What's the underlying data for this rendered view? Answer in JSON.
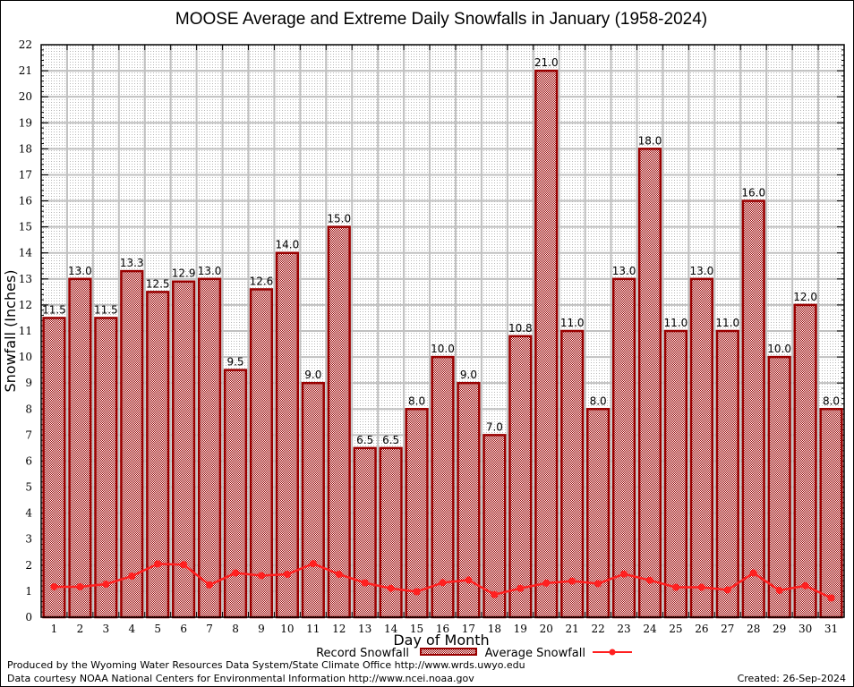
{
  "chart_data": {
    "type": "bar",
    "title": "MOOSE Average and Extreme Daily Snowfalls in January (1958-2024)",
    "xlabel": "Day of Month",
    "ylabel": "Snowfall (Inches)",
    "ylim": [
      0,
      22
    ],
    "yticks": [
      0,
      1,
      2,
      3,
      4,
      5,
      6,
      7,
      8,
      9,
      10,
      11,
      12,
      13,
      14,
      15,
      16,
      17,
      18,
      19,
      20,
      21,
      22
    ],
    "grid": true,
    "categories": [
      "1",
      "2",
      "3",
      "4",
      "5",
      "6",
      "7",
      "8",
      "9",
      "10",
      "11",
      "12",
      "13",
      "14",
      "15",
      "16",
      "17",
      "18",
      "19",
      "20",
      "21",
      "22",
      "23",
      "24",
      "25",
      "26",
      "27",
      "28",
      "29",
      "30",
      "31"
    ],
    "series": [
      {
        "name": "Record Snowfall",
        "type": "bar",
        "color": "#990000",
        "values": [
          11.5,
          13.0,
          11.5,
          13.3,
          12.5,
          12.9,
          13.0,
          9.5,
          12.6,
          14.0,
          9.0,
          15.0,
          6.5,
          6.5,
          8.0,
          10.0,
          9.0,
          7.0,
          10.8,
          21.0,
          11.0,
          8.0,
          13.0,
          18.0,
          11.0,
          13.0,
          11.0,
          16.0,
          10.0,
          12.0,
          8.0
        ],
        "labels": [
          "11.5",
          "13.0",
          "11.5",
          "13.3",
          "12.5",
          "12.9",
          "13.0",
          "9.5",
          "12.6",
          "14.0",
          "9.0",
          "15.0",
          "6.5",
          "6.5",
          "8.0",
          "10.0",
          "9.0",
          "7.0",
          "10.8",
          "21.0",
          "11.0",
          "8.0",
          "13.0",
          "18.0",
          "11.0",
          "13.0",
          "11.0",
          "16.0",
          "10.0",
          "12.0",
          "8.0"
        ]
      },
      {
        "name": "Average Snowfall",
        "type": "line",
        "color": "#ff2020",
        "values": [
          1.17,
          1.17,
          1.27,
          1.58,
          2.05,
          2.02,
          1.24,
          1.7,
          1.6,
          1.65,
          2.06,
          1.65,
          1.32,
          1.11,
          0.98,
          1.33,
          1.43,
          0.87,
          1.11,
          1.31,
          1.39,
          1.29,
          1.66,
          1.42,
          1.15,
          1.15,
          1.05,
          1.7,
          1.03,
          1.21,
          0.74
        ]
      }
    ],
    "legend": "bottom-center"
  },
  "credits": {
    "line1": "Produced by the Wyoming Water Resources Data System/State Climate Office http://www.wrds.uwyo.edu",
    "line2": "Data courtesy NOAA National Centers for Environmental Information http://www.ncei.noaa.gov",
    "created": "Created: 26-Sep-2024"
  }
}
